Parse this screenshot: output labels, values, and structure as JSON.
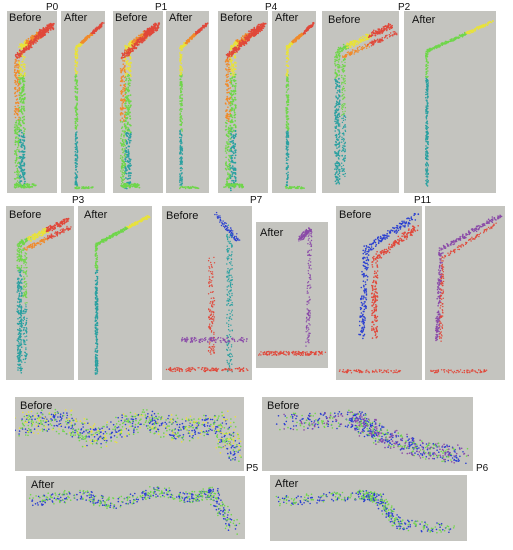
{
  "figure": {
    "labels": {
      "before": "Before",
      "after": "After"
    },
    "groups": [
      {
        "name": "P0"
      },
      {
        "name": "P1"
      },
      {
        "name": "P4"
      },
      {
        "name": "P2"
      },
      {
        "name": "P3"
      },
      {
        "name": "P7"
      },
      {
        "name": "P11"
      },
      {
        "name": "P5"
      },
      {
        "name": "P6"
      }
    ],
    "colors": {
      "panel_bg": "#c4c4bf",
      "red": "#e0483a",
      "orange": "#f08a2a",
      "yellow": "#e8e23a",
      "green": "#6fd64a",
      "teal": "#2aa0a0",
      "blue": "#2a3fd0",
      "purple": "#8a4aa8"
    }
  }
}
